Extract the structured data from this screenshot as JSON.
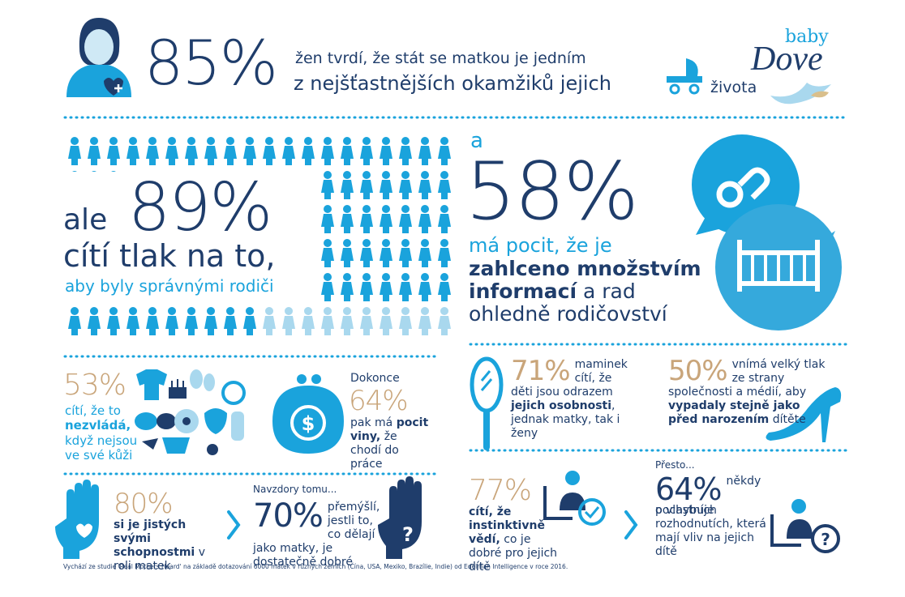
{
  "header": {
    "stat": "85%",
    "line1": "žen tvrdí, že stát se matkou je jedním",
    "line2": "z nejšťastnějších okamžiků jejich",
    "line3": "života"
  },
  "logo": {
    "baby": "baby",
    "brand": "Dove"
  },
  "pressure": {
    "lead": "ale",
    "stat": "89%",
    "line1": "cítí tlak na to,",
    "line2": "aby byly správnými rodiči"
  },
  "information": {
    "lead": "a",
    "stat": "58%",
    "line1": "má pocit, že je",
    "line2": "zahlceno množstvím",
    "line3_bold": "informací",
    "line3": " a rad",
    "line4": "ohledně rodičovství"
  },
  "comfort": {
    "stat": "53%",
    "text1": "cítí, že to",
    "bold": "nezvládá,",
    "text2": "když nejsou ve své kůži"
  },
  "guilt": {
    "lead": "Dokonce",
    "stat": "64%",
    "text1": "pak má",
    "bold": "pocit viny,",
    "text2": "že chodí do práce"
  },
  "reflection": {
    "stat": "71%",
    "text1": "maminek cítí, že děti jsou odrazem ",
    "bold": "jejich osobnosti",
    "text2": ", jednak matky, tak i ženy"
  },
  "appearance": {
    "stat": "50%",
    "text1": "vnímá velký tlak ze strany společnosti a médií, aby ",
    "bold": "vypadaly stejně jako před narozením",
    "text2": " dítěte"
  },
  "confidence": {
    "stat": "80%",
    "bold": "si je jistých svými schopnostmi",
    "text": " v roli matek"
  },
  "wondering": {
    "lead": "Navzdory tomu...",
    "stat": "70%",
    "text": "přemýšlí, jestli to, co dělají jako matky, je dostatečně dobré"
  },
  "instinct": {
    "stat": "77%",
    "bold": "cítí, že instinktivně vědí,",
    "text": " co je dobré pro jejich dítě"
  },
  "doubt": {
    "lead": "Přesto...",
    "stat": "64%",
    "text1": "někdy pochybuje",
    "text2": "o vlastních rozhodnutích, která mají vliv na jejich dítě"
  },
  "footnote": "Vychází ze studie 'Real Mothers Heard' na základě dotazování 6000 matek v různých zemích (Čína, USA, Mexiko, Brazílie, Indie) od Edelman Intelligence v roce 2016."
}
